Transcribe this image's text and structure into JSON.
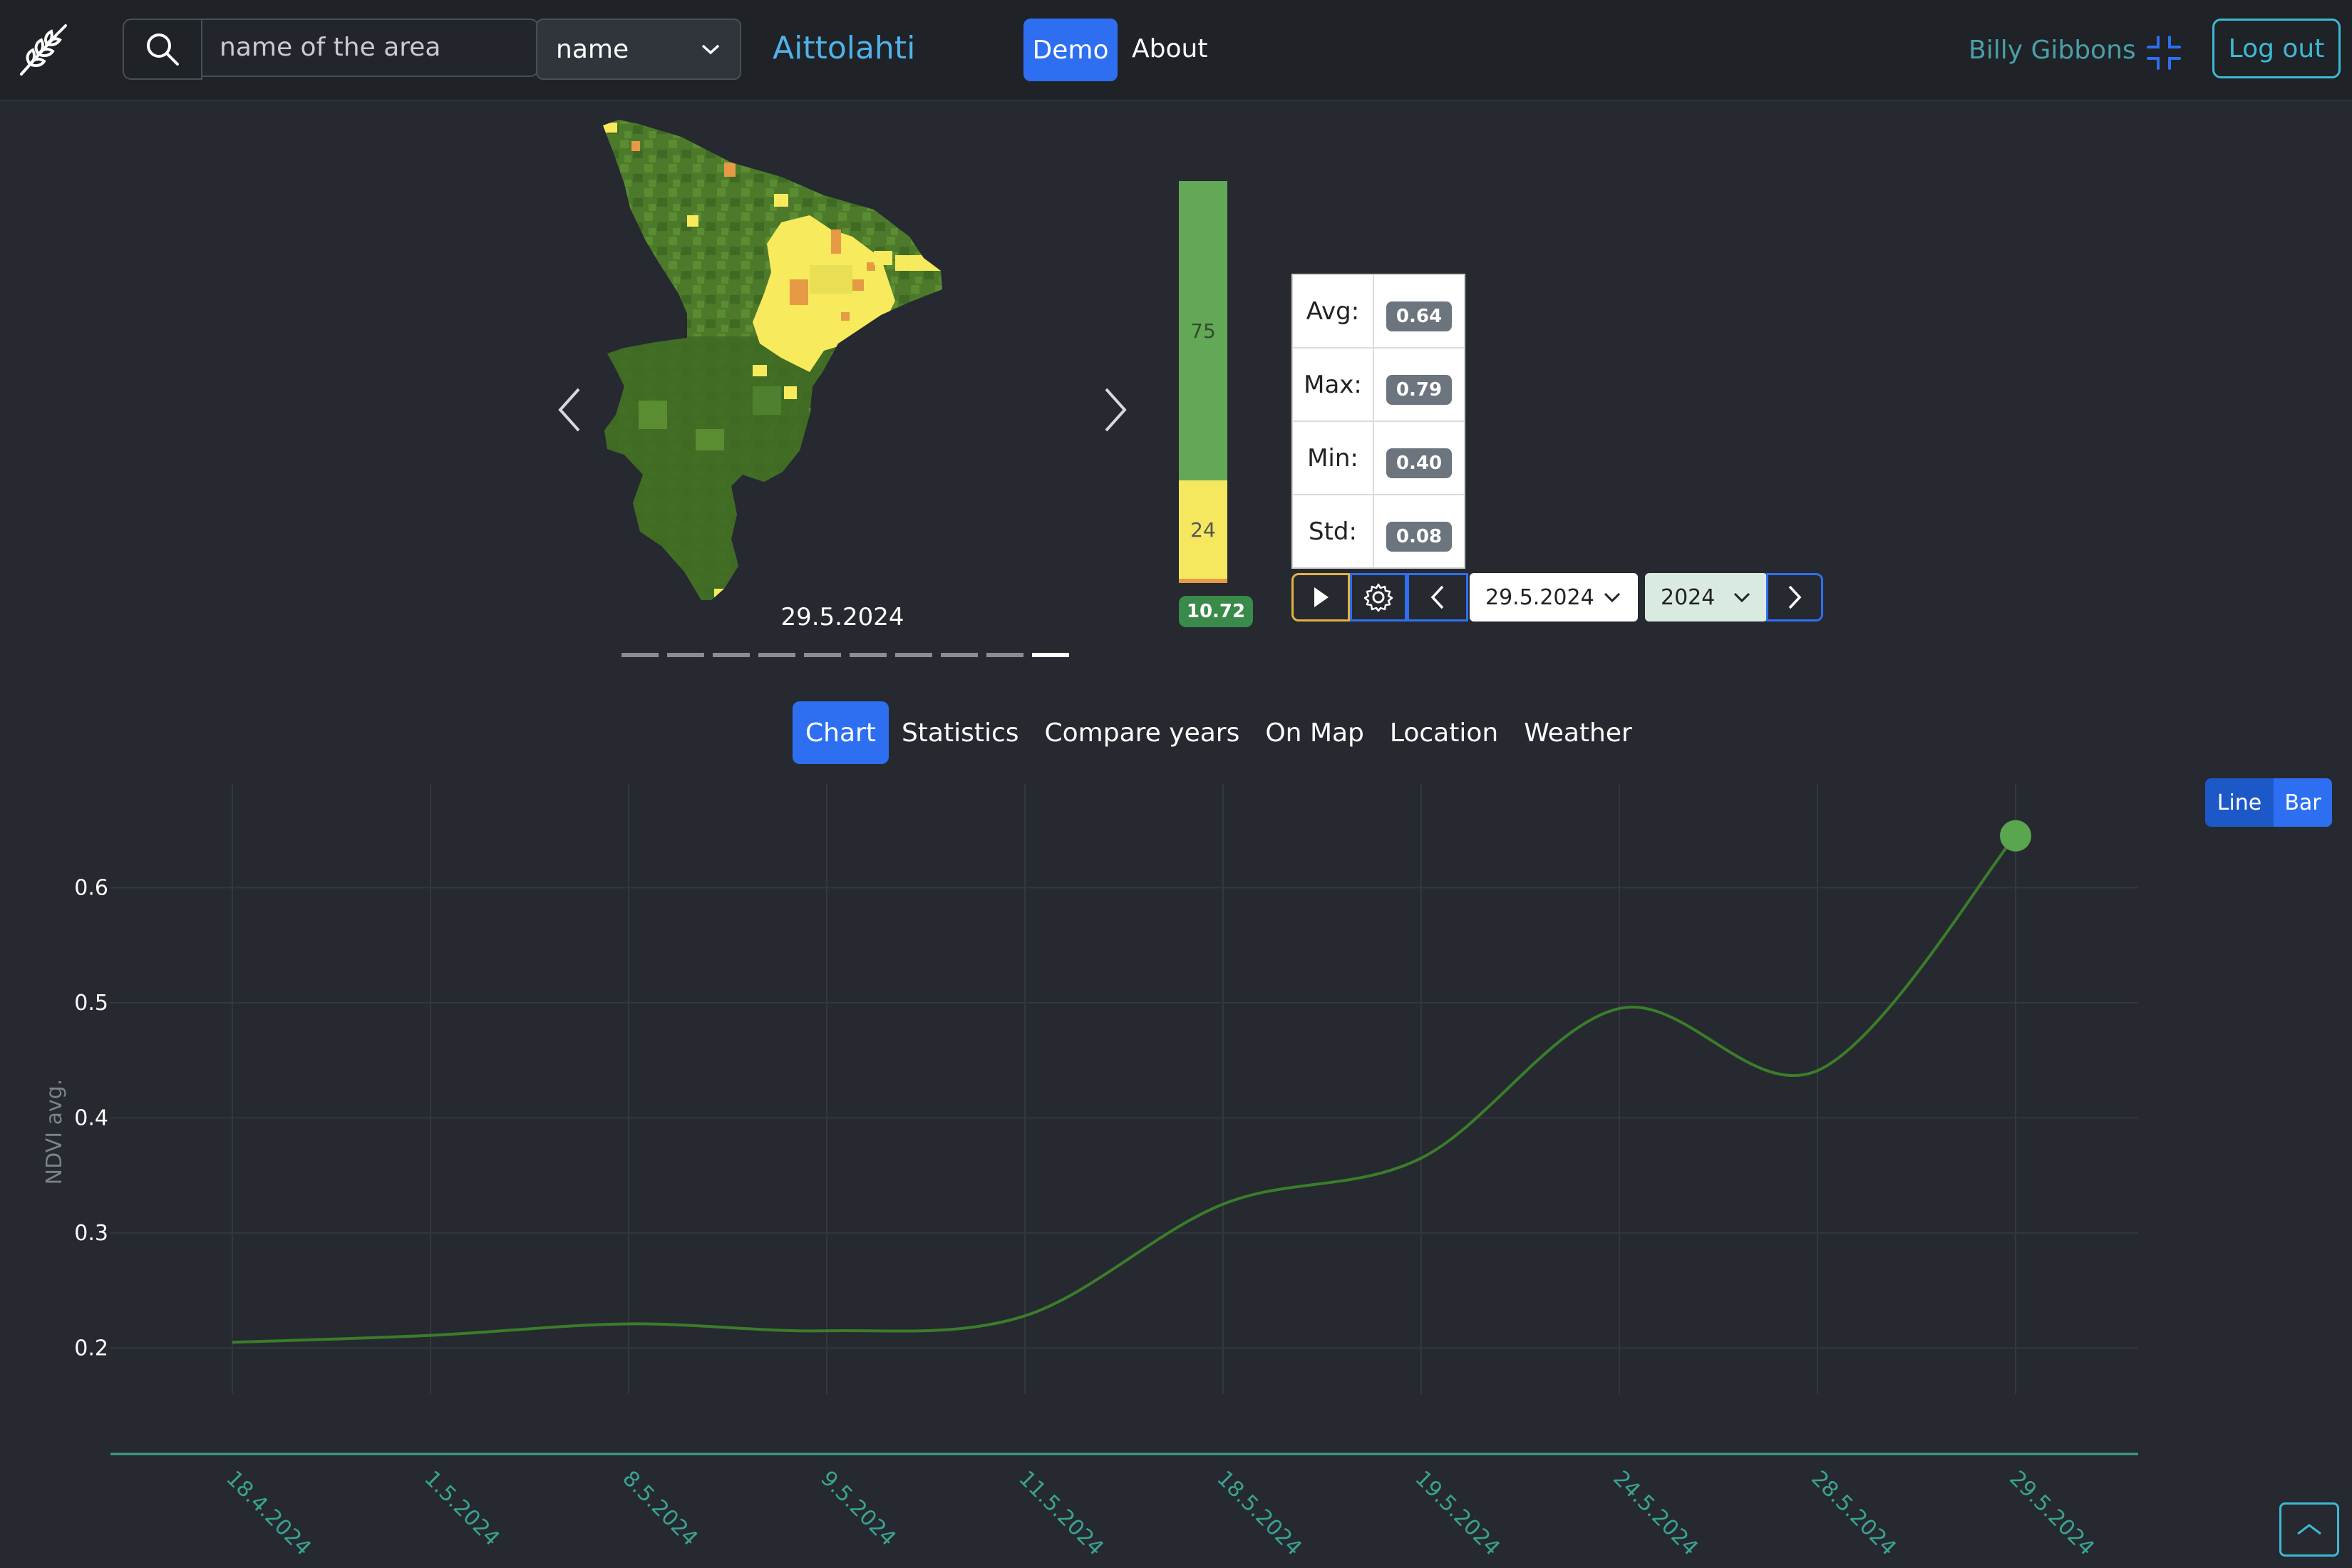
{
  "navbar": {
    "search_placeholder": "name of the area",
    "search_field_select": "name",
    "area_name": "Aittolahti",
    "demo_label": "Demo",
    "about_label": "About",
    "user_name": "Billy Gibbons",
    "logout_label": "Log out"
  },
  "map": {
    "date": "29.5.2024",
    "slides_count": 10,
    "active_slide": 10
  },
  "legend": {
    "green_pct": "75",
    "yellow_pct": "24",
    "value_badge": "10.72",
    "colors": {
      "green": "#63a857",
      "yellow": "#f5e85e",
      "orange": "#e79a45"
    }
  },
  "stats": {
    "rows": [
      {
        "label": "Avg:",
        "value": "0.64"
      },
      {
        "label": "Max:",
        "value": "0.79"
      },
      {
        "label": "Min:",
        "value": "0.40"
      },
      {
        "label": "Std:",
        "value": "0.08"
      }
    ]
  },
  "controls": {
    "date_select": "29.5.2024",
    "year_select": "2024"
  },
  "tabs": [
    {
      "label": "Chart",
      "active": true
    },
    {
      "label": "Statistics",
      "active": false
    },
    {
      "label": "Compare years",
      "active": false
    },
    {
      "label": "On Map",
      "active": false
    },
    {
      "label": "Location",
      "active": false
    },
    {
      "label": "Weather",
      "active": false
    }
  ],
  "chart_toggle": {
    "line_label": "Line",
    "bar_label": "Bar",
    "selected": "Line"
  },
  "chart_data": {
    "type": "line",
    "ylabel": "NDVI avg.",
    "xlabel": "",
    "categories": [
      "18.4.2024",
      "1.5.2024",
      "8.5.2024",
      "9.5.2024",
      "11.5.2024",
      "18.5.2024",
      "19.5.2024",
      "24.5.2024",
      "28.5.2024",
      "29.5.2024"
    ],
    "values": [
      0.205,
      0.211,
      0.221,
      0.215,
      0.228,
      0.325,
      0.365,
      0.495,
      0.441,
      0.645
    ],
    "yticks": [
      0.2,
      0.3,
      0.4,
      0.5,
      0.6
    ],
    "ylim": [
      0.16,
      0.69
    ],
    "grid": true,
    "highlight_last_point": true,
    "line_color": "#3a7d2a",
    "point_color": "#5aa64e"
  }
}
